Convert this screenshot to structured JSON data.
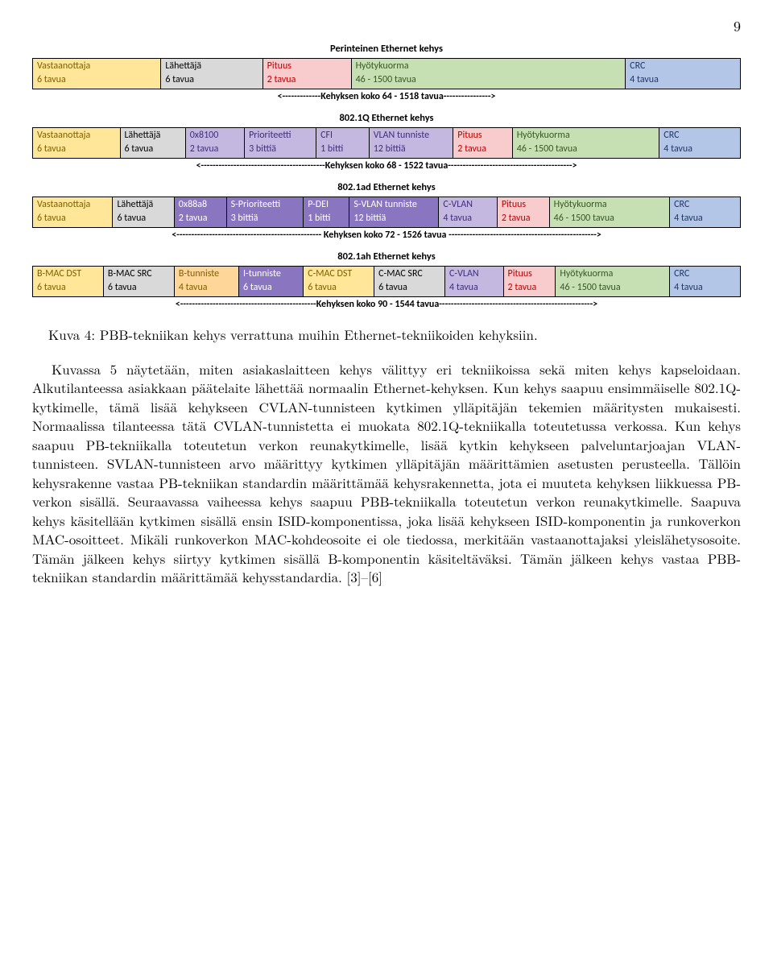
{
  "page_number": "9",
  "colors": {
    "yellow": "#ffe699",
    "purple": "#c5b8e0",
    "darkpurple": "#8a76c0",
    "gray": "#d9d9d9",
    "pink": "#f8cbcd",
    "green": "#c6e0b4",
    "blue": "#b4c6e7",
    "orange": "#ffd699",
    "text_yellow": "#7f6000",
    "text_purple": "#3e2e7a",
    "text_darkpurple": "#ffffff",
    "text_gray": "#000000",
    "text_pink": "#c00000",
    "text_green": "#385723",
    "text_blue": "#203864",
    "text_orange": "#7f6000"
  },
  "frames": [
    {
      "title": "Perinteinen Ethernet kehys",
      "size_line": "<-------------Kehyksen koko 64 - 1518 tavua---------------->",
      "widths": [
        18,
        14,
        12,
        40,
        16
      ],
      "cells": [
        {
          "label": "Vastaanottaja",
          "size": "6 tavua",
          "fill": "yellow"
        },
        {
          "label": "Lähettäjä",
          "size": "6 tavua",
          "fill": "gray"
        },
        {
          "label": "Pituus",
          "size": "2 tavua",
          "fill": "pink"
        },
        {
          "label": "Hyötykuorma",
          "size": "46 - 1500 tavua",
          "fill": "green"
        },
        {
          "label": "CRC",
          "size": "4 tavua",
          "fill": "blue"
        }
      ]
    },
    {
      "title": "802.1Q Ethernet kehys",
      "size_line": "<------------------------------------------Kehyksen koko 68 - 1522 tavua------------------------------------------>",
      "widths": [
        12.5,
        9,
        8,
        10,
        7,
        12,
        8,
        22,
        11.5
      ],
      "cells": [
        {
          "label": "Vastaanottaja",
          "size": "6 tavua",
          "fill": "yellow"
        },
        {
          "label": "Lähettäjä",
          "size": "6 tavua",
          "fill": "gray"
        },
        {
          "label": "0x8100",
          "size": "2 tavua",
          "fill": "purple"
        },
        {
          "label": "Prioriteetti",
          "size": "3 bittiä",
          "fill": "purple"
        },
        {
          "label": "CFI",
          "size": "1 bitti",
          "fill": "purple"
        },
        {
          "label": "VLAN tunniste",
          "size": "12 bittiä",
          "fill": "purple"
        },
        {
          "label": "Pituus",
          "size": "2 tavua",
          "fill": "pink"
        },
        {
          "label": "Hyötykuorma",
          "size": "46 - 1500 tavua",
          "fill": "green"
        },
        {
          "label": "CRC",
          "size": "4 tavua",
          "fill": "blue"
        }
      ]
    },
    {
      "title": "802.1ad Ethernet kehys",
      "size_line": "<------------------------------------------------- Kehyksen koko 72 - 1526 tavua -------------------------------------------------->",
      "widths": [
        11.5,
        8.5,
        7,
        11,
        6,
        13,
        8,
        7,
        18,
        10
      ],
      "cells": [
        {
          "label": "Vastaanottaja",
          "size": "6 tavua",
          "fill": "yellow"
        },
        {
          "label": "Lähettäjä",
          "size": "6 tavua",
          "fill": "gray"
        },
        {
          "label": "0x88a8",
          "size": "2 tavua",
          "fill": "darkpurple"
        },
        {
          "label": "S-Prioriteetti",
          "size": "3 bittiä",
          "fill": "darkpurple"
        },
        {
          "label": "P-DEI",
          "size": "1 bitti",
          "fill": "darkpurple"
        },
        {
          "label": "S-VLAN tunniste",
          "size": "12 bittiä",
          "fill": "darkpurple"
        },
        {
          "label": "C-VLAN",
          "size": "4 tavua",
          "fill": "purple"
        },
        {
          "label": "Pituus",
          "size": "2 tavua",
          "fill": "pink"
        },
        {
          "label": "Hyötykuorma",
          "size": "46 - 1500 tavua",
          "fill": "green"
        },
        {
          "label": "CRC",
          "size": "4 tavua",
          "fill": "blue"
        }
      ]
    },
    {
      "title": "802.1ah Ethernet kehys",
      "size_line": "<----------------------------------------------Kehyksen koko 90 - 1544 tavua---------------------------------------------------->",
      "widths": [
        10,
        10,
        9,
        9,
        10,
        10,
        8,
        7,
        17,
        10
      ],
      "cells": [
        {
          "label": "B-MAC DST",
          "size": "6 tavua",
          "fill": "yellow"
        },
        {
          "label": "B-MAC SRC",
          "size": "6 tavua",
          "fill": "gray"
        },
        {
          "label": "B-tunniste",
          "size": "4 tavua",
          "fill": "orange"
        },
        {
          "label": "I-tunniste",
          "size": "6 tavua",
          "fill": "darkpurple"
        },
        {
          "label": "C-MAC DST",
          "size": "6 tavua",
          "fill": "yellow"
        },
        {
          "label": "C-MAC SRC",
          "size": "6 tavua",
          "fill": "gray"
        },
        {
          "label": "C-VLAN",
          "size": "4 tavua",
          "fill": "purple"
        },
        {
          "label": "Pituus",
          "size": "2 tavua",
          "fill": "pink"
        },
        {
          "label": "Hyötykuorma",
          "size": "46 - 1500 tavua",
          "fill": "green"
        },
        {
          "label": "CRC",
          "size": "4 tavua",
          "fill": "blue"
        }
      ]
    }
  ],
  "caption": "Kuva 4: PBB-tekniikan kehys verrattuna muihin Ethernet-tekniikoiden kehyksiin.",
  "body": "Kuvassa 5 näytetään, miten asiakaslaitteen kehys välittyy eri tekniikoissa sekä miten kehys kapseloidaan. Alkutilanteessa asiakkaan päätelaite lähettää normaalin Ethernet-kehyksen. Kun kehys saapuu ensimmäiselle 802.1Q-kytkimelle, tämä lisää kehykseen CVLAN-tunnisteen kytkimen ylläpitäjän tekemien määritysten mukaisesti. Normaalissa tilanteessa tätä CVLAN-tunnistetta ei muokata 802.1Q-tekniikalla toteutetussa verkossa. Kun kehys saapuu PB-tekniikalla toteutetun verkon reunakytkimelle, lisää kytkin kehykseen palveluntarjoajan VLAN-tunnisteen. SVLAN-tunnisteen arvo määrittyy kytkimen ylläpitäjän määrittämien asetusten perusteella. Tällöin kehysrakenne vastaa PB-tekniikan standardin määrittämää kehysrakennetta, jota ei muuteta kehyksen liikkuessa PB-verkon sisällä. Seuraavassa vaiheessa kehys saapuu PBB-tekniikalla toteutetun verkon reunakytkimelle. Saapuva kehys käsitellään kytkimen sisällä ensin ISID-komponentissa, joka lisää kehykseen ISID-komponentin ja runkoverkon MAC-osoitteet. Mikäli runkoverkon MAC-kohdeosoite ei ole tiedossa, merkitään vastaanottajaksi yleislähetysosoite. Tämän jälkeen kehys siirtyy kytkimen sisällä B-komponentin käsiteltäväksi. Tämän jälkeen kehys vastaa PBB-tekniikan standardin määrittämää kehysstandardia. [3]–[6]"
}
